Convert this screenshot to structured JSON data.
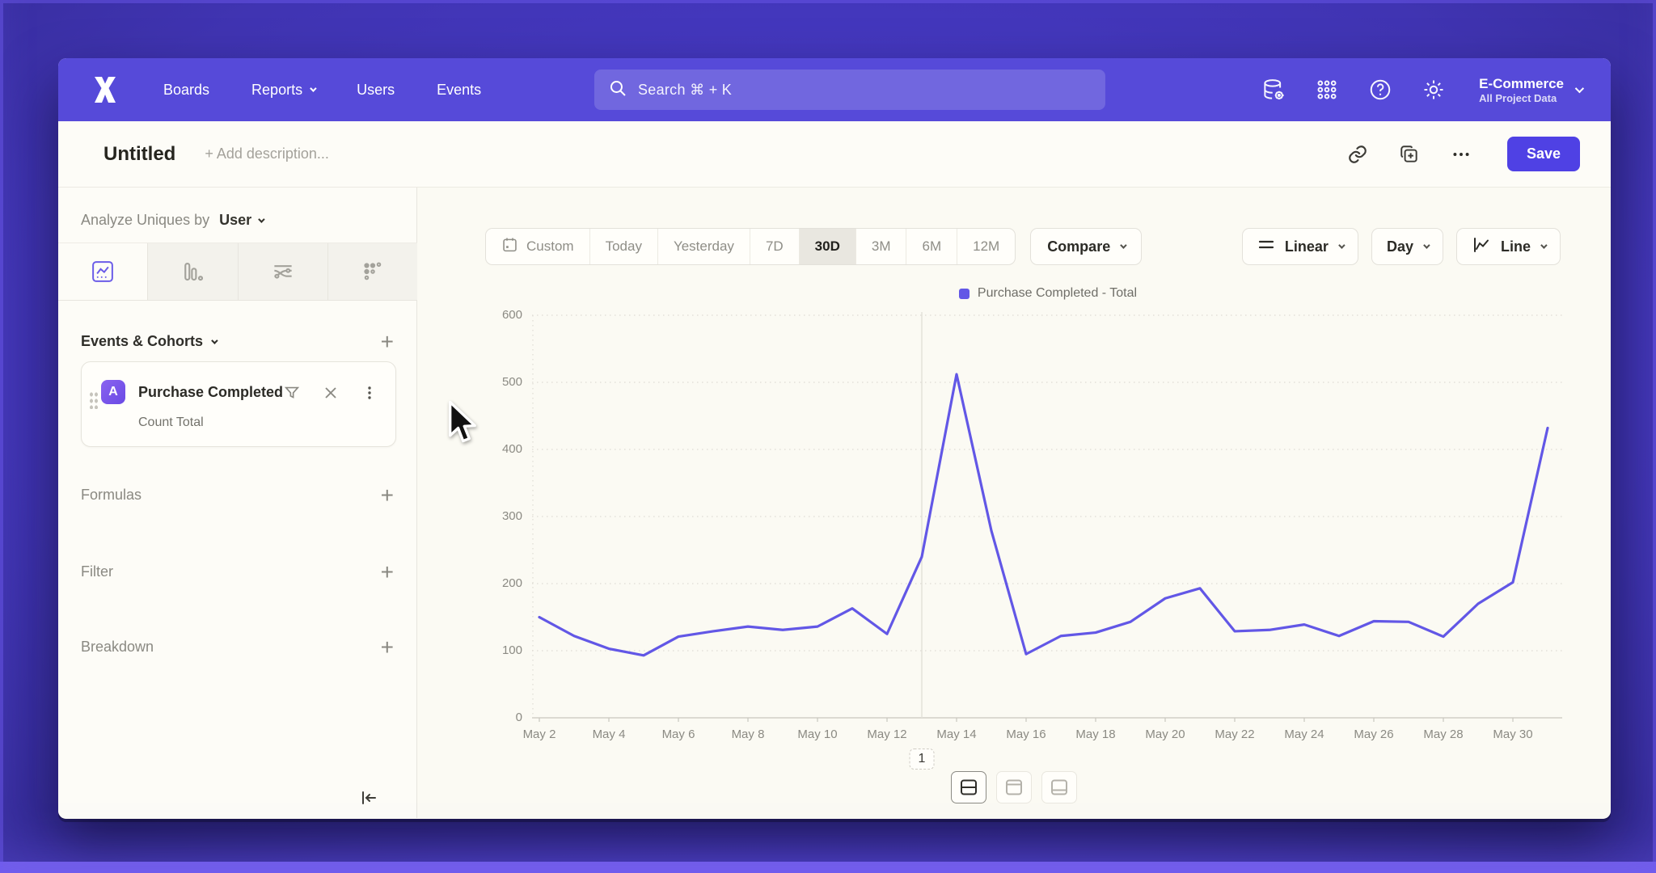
{
  "nav": {
    "items": [
      {
        "label": "Boards",
        "has_menu": false
      },
      {
        "label": "Reports",
        "has_menu": true
      },
      {
        "label": "Users",
        "has_menu": false
      },
      {
        "label": "Events",
        "has_menu": false
      }
    ],
    "search_placeholder": "Search  ⌘ + K",
    "project": {
      "name": "E-Commerce",
      "subtitle": "All Project Data"
    }
  },
  "header": {
    "title": "Untitled",
    "description_placeholder": "+ Add description...",
    "save_label": "Save"
  },
  "sidebar": {
    "analyze_label": "Analyze Uniques by",
    "analyze_value": "User",
    "tabs": [
      "insights",
      "bar",
      "flow",
      "retention"
    ],
    "active_tab": "insights",
    "events_section": "Events & Cohorts",
    "event_card": {
      "badge": "A",
      "name": "Purchase Completed",
      "subtitle": "Count Total"
    },
    "sections": [
      "Formulas",
      "Filter",
      "Breakdown"
    ]
  },
  "toolbar": {
    "ranges": [
      "Custom",
      "Today",
      "Yesterday",
      "7D",
      "30D",
      "3M",
      "6M",
      "12M"
    ],
    "active_range": "30D",
    "compare_label": "Compare",
    "scale_label": "Linear",
    "granularity_label": "Day",
    "chart_type_label": "Line"
  },
  "chart_data": {
    "type": "line",
    "legend": "Purchase Completed - Total",
    "line_color": "#6257e6",
    "x": [
      "May 2",
      "May 3",
      "May 4",
      "May 5",
      "May 6",
      "May 7",
      "May 8",
      "May 9",
      "May 10",
      "May 11",
      "May 12",
      "May 13",
      "May 14",
      "May 15",
      "May 16",
      "May 17",
      "May 18",
      "May 19",
      "May 20",
      "May 21",
      "May 22",
      "May 23",
      "May 24",
      "May 25",
      "May 26",
      "May 27",
      "May 28",
      "May 29",
      "May 30",
      "May 31"
    ],
    "values": [
      150,
      122,
      103,
      93,
      121,
      129,
      136,
      131,
      136,
      163,
      125,
      240,
      512,
      279,
      95,
      122,
      127,
      143,
      178,
      193,
      129,
      131,
      139,
      122,
      144,
      143,
      121,
      170,
      202,
      432
    ],
    "ylim": [
      0,
      600
    ],
    "yticks": [
      0,
      100,
      200,
      300,
      400,
      500,
      600
    ],
    "xtick_every": 2,
    "grid": true,
    "legend_position": "top-center",
    "annotation": {
      "label": "1",
      "x": "May 13"
    }
  },
  "colors": {
    "nav": "#564ad9",
    "accent": "#4f41e4",
    "line": "#6257e6"
  }
}
